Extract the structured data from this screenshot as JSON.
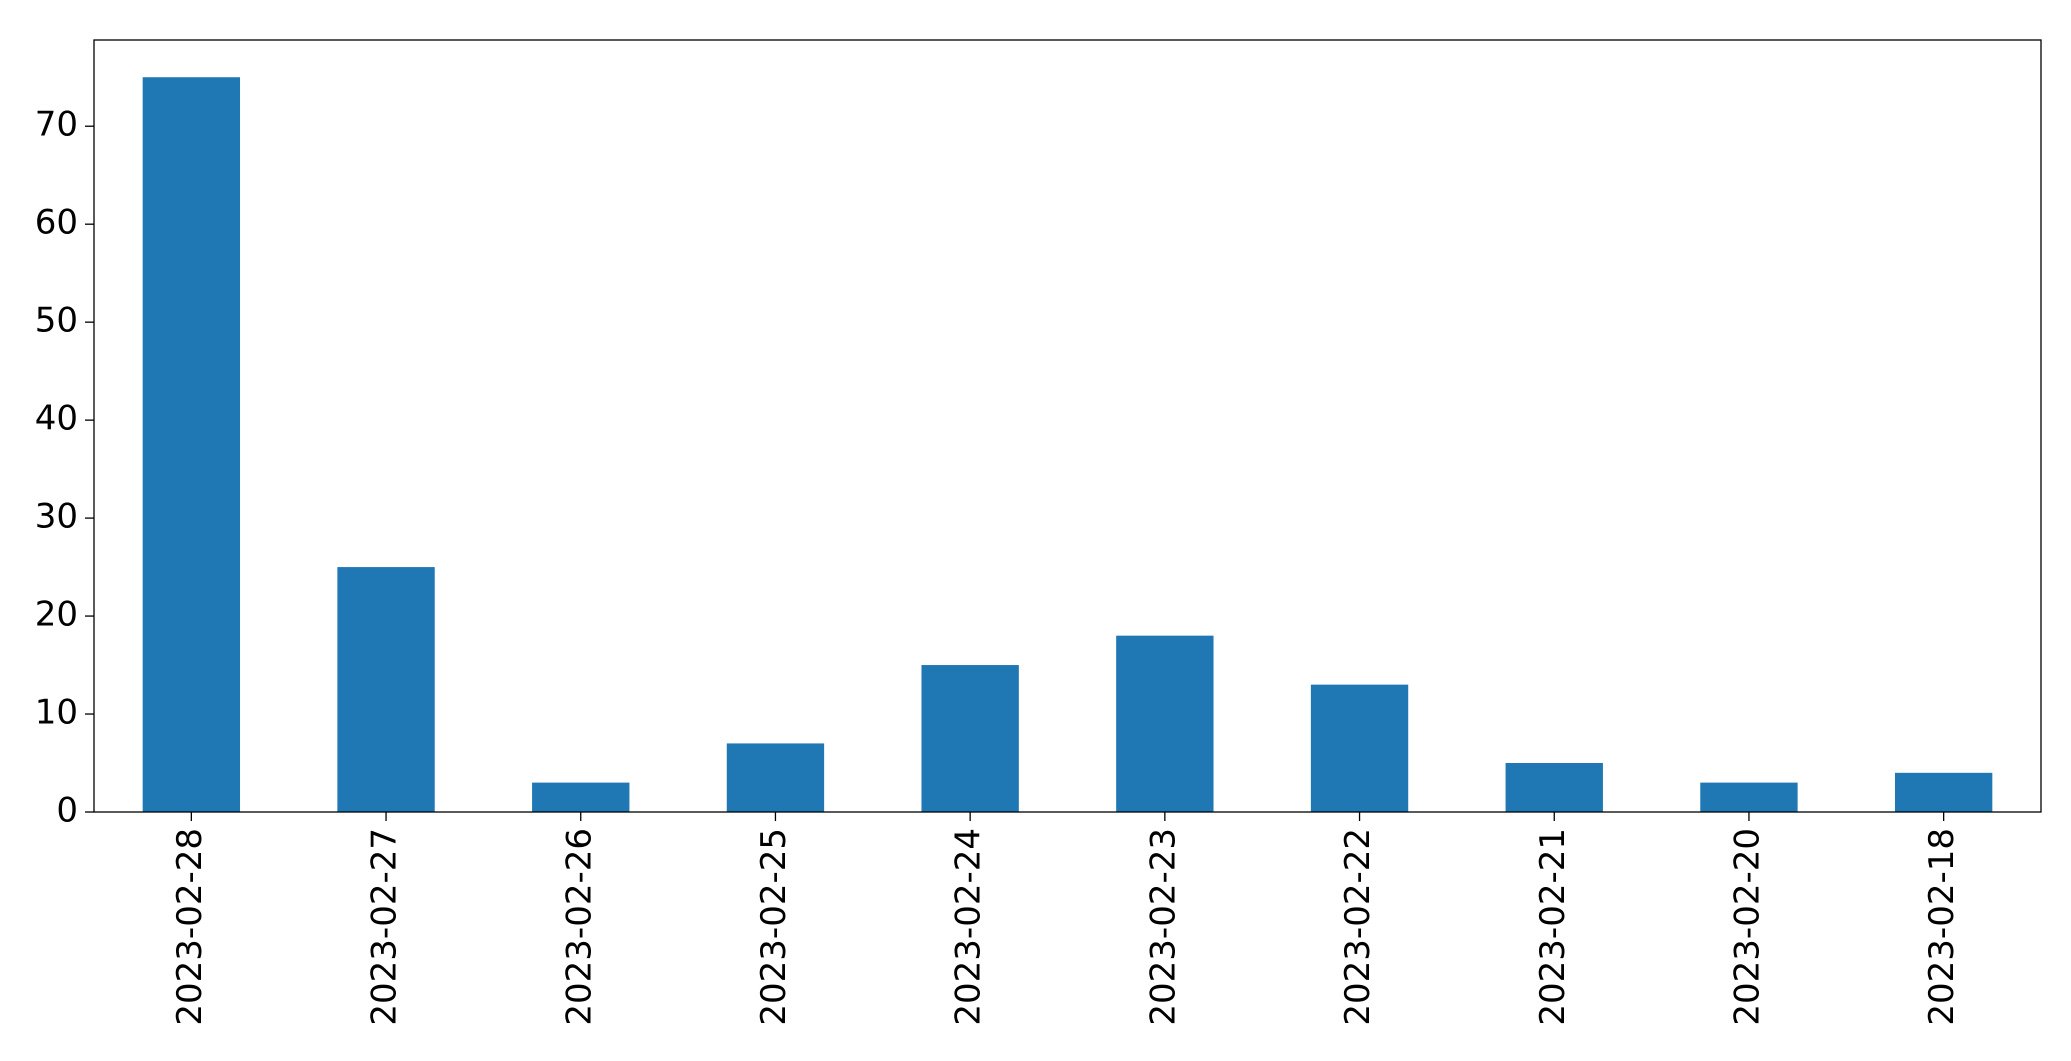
{
  "chart_data": {
    "type": "bar",
    "categories": [
      "2023-02-28",
      "2023-02-27",
      "2023-02-26",
      "2023-02-25",
      "2023-02-24",
      "2023-02-23",
      "2023-02-22",
      "2023-02-21",
      "2023-02-20",
      "2023-02-18"
    ],
    "values": [
      75,
      25,
      3,
      7,
      15,
      18,
      13,
      5,
      3,
      4
    ],
    "color": "#1f77b4",
    "ylim": [
      0,
      78.8
    ],
    "yticks": [
      0,
      10,
      20,
      30,
      40,
      50,
      60,
      70
    ],
    "grid": false
  }
}
